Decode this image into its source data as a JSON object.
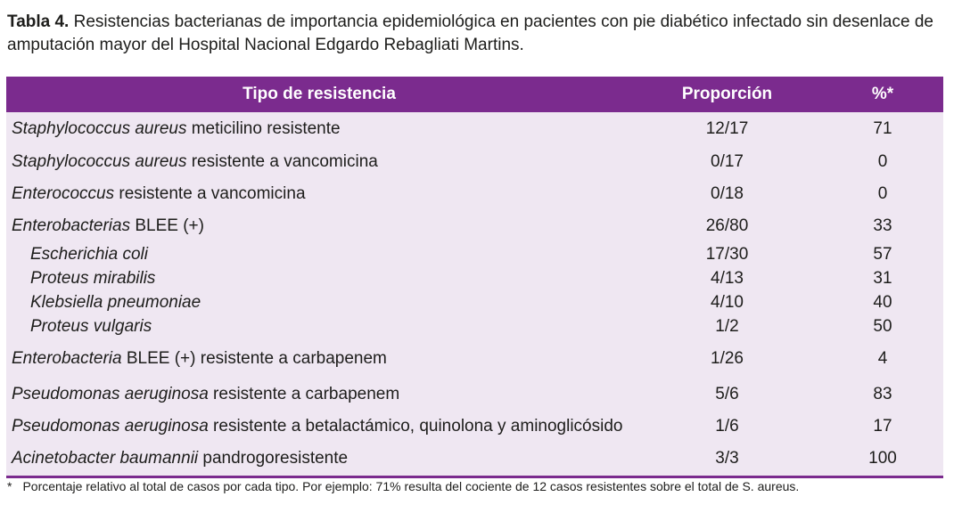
{
  "caption": {
    "label": "Tabla 4.",
    "text": " Resistencias bacterianas de importancia epidemiológica en pacientes con pie diabético infectado sin desenlace de amputación mayor del Hospital Nacional Edgardo Rebagliati Martins."
  },
  "table": {
    "headers": [
      "Tipo de resistencia",
      "Proporción",
      "%*"
    ],
    "rows": [
      {
        "organism": "Staphylococcus aureus",
        "rest": " meticilino resistente",
        "proportion": "12/17",
        "percent": "71"
      },
      {
        "organism": "Staphylococcus aureus",
        "rest": " resistente a vancomicina",
        "proportion": "0/17",
        "percent": "0"
      },
      {
        "organism": "Enterococcus",
        "rest": " resistente a vancomicina",
        "proportion": "0/18",
        "percent": "0"
      },
      {
        "organism": "Enterobacterias",
        "rest": " BLEE (+)",
        "proportion": "26/80",
        "percent": "33"
      },
      {
        "organism": "Escherichia coli",
        "rest": "",
        "proportion": "17/30",
        "percent": "57"
      },
      {
        "organism": "Proteus mirabilis",
        "rest": "",
        "proportion": "4/13",
        "percent": "31"
      },
      {
        "organism": "Klebsiella pneumoniae",
        "rest": "",
        "proportion": "4/10",
        "percent": "40"
      },
      {
        "organism": "Proteus vulgaris",
        "rest": "",
        "proportion": "1/2",
        "percent": "50"
      },
      {
        "organism": "Enterobacteria",
        "rest": " BLEE (+) resistente a carbapenem",
        "proportion": "1/26",
        "percent": "4"
      },
      {
        "organism": "Pseudomonas aeruginosa",
        "rest": " resistente a carbapenem",
        "proportion": "5/6",
        "percent": "83"
      },
      {
        "organism": "Pseudomonas aeruginosa",
        "rest": " resistente a betalactámico, quinolona y aminoglicósido",
        "proportion": "1/6",
        "percent": "17"
      },
      {
        "organism": "Acinetobacter baumannii",
        "rest": " pandrogoresistente",
        "proportion": "3/3",
        "percent": "100"
      }
    ]
  },
  "footnote": {
    "marker": "*",
    "text": "Porcentaje relativo al total de casos por cada tipo. Por ejemplo: 71% resulta del cociente de 12 casos resistentes sobre el total de S. aureus."
  }
}
